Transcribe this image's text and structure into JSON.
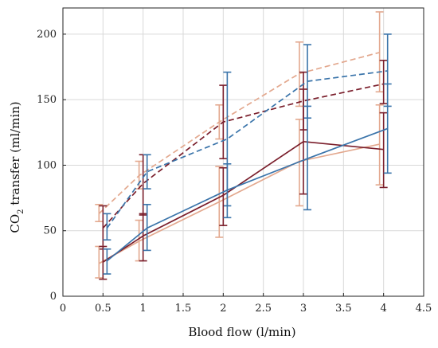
{
  "chart_data": {
    "type": "line",
    "xlabel": "Blood flow (l/min)",
    "ylabel_main": "CO",
    "ylabel_sub": "2",
    "ylabel_rest": " transfer (ml/min)",
    "xlim": [
      0,
      4.5
    ],
    "ylim": [
      0,
      220
    ],
    "xticks": [
      "0",
      "0.5",
      "1",
      "1.5",
      "2",
      "2.5",
      "3",
      "3.5",
      "4",
      "4.5"
    ],
    "yticks": [
      "0",
      "50",
      "100",
      "150",
      "200"
    ],
    "grid": true,
    "legend": "none",
    "series": [
      {
        "color": "#e3a88e",
        "dash": "dashed",
        "x": [
          0.45,
          0.95,
          1.95,
          2.95,
          3.95
        ],
        "y": [
          63,
          92,
          133,
          170,
          186
        ],
        "err_low": [
          57,
          82,
          120,
          145,
          156
        ],
        "err_high": [
          70,
          103,
          146,
          194,
          217
        ]
      },
      {
        "color": "#7a1e2b",
        "dash": "dashed",
        "x": [
          0.5,
          1.0,
          2.0,
          3.0,
          4.0
        ],
        "y": [
          52,
          86,
          133,
          149,
          162
        ],
        "err_low": [
          36,
          62,
          105,
          127,
          147
        ],
        "err_high": [
          69,
          108,
          161,
          171,
          180
        ]
      },
      {
        "color": "#3a74aa",
        "dash": "dashed",
        "x": [
          0.55,
          1.05,
          2.05,
          3.05,
          4.05
        ],
        "y": [
          52,
          95,
          120,
          164,
          172
        ],
        "err_low": [
          43,
          82,
          69,
          136,
          145
        ],
        "err_high": [
          63,
          108,
          171,
          192,
          200
        ]
      },
      {
        "color": "#e3a88e",
        "dash": "solid",
        "x": [
          0.45,
          0.95,
          1.95,
          2.95,
          3.95
        ],
        "y": [
          25,
          42,
          72,
          103,
          116
        ],
        "err_low": [
          14,
          27,
          45,
          69,
          85
        ],
        "err_high": [
          38,
          58,
          99,
          135,
          146
        ]
      },
      {
        "color": "#7a1e2b",
        "dash": "solid",
        "x": [
          0.5,
          1.0,
          2.0,
          3.0,
          4.0
        ],
        "y": [
          26,
          46,
          77,
          118,
          112
        ],
        "err_low": [
          13,
          27,
          54,
          78,
          83
        ],
        "err_high": [
          38,
          63,
          98,
          158,
          140
        ]
      },
      {
        "color": "#3a74aa",
        "dash": "solid",
        "x": [
          0.55,
          1.05,
          2.05,
          3.05,
          4.05
        ],
        "y": [
          27,
          52,
          81,
          105,
          128
        ],
        "err_low": [
          17,
          35,
          60,
          66,
          94
        ],
        "err_high": [
          36,
          70,
          101,
          145,
          162
        ]
      }
    ]
  }
}
